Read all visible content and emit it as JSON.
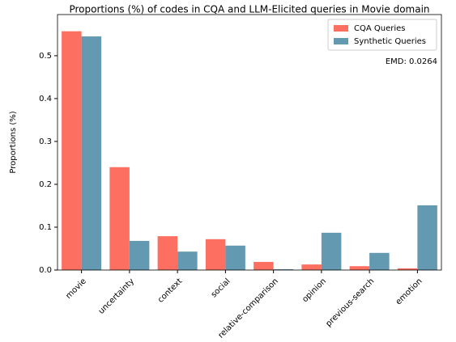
{
  "chart_data": {
    "type": "bar",
    "title": "Proportions (%) of codes in CQA and LLM-Elicited queries in Movie domain",
    "y_label": "Proportions (%)",
    "annotation": "EMD: 0.0264",
    "categories": [
      "movie",
      "uncertainty",
      "context",
      "social",
      "relative-comparison",
      "opinion",
      "previous-search",
      "emotion"
    ],
    "series": [
      {
        "name": "CQA Queries",
        "color": "#fd6f61",
        "values": [
          0.557,
          0.24,
          0.079,
          0.072,
          0.019,
          0.013,
          0.009,
          0.004
        ]
      },
      {
        "name": "Synthetic Queries",
        "color": "#6499b2",
        "values": [
          0.545,
          0.068,
          0.043,
          0.057,
          0.002,
          0.087,
          0.04,
          0.151
        ]
      }
    ],
    "ylim": [
      0,
      0.596
    ],
    "yticks": [
      {
        "value": 0,
        "label": "0.0"
      },
      0.1,
      0.2,
      0.3,
      0.4,
      0.5
    ],
    "legend": "upper right"
  }
}
